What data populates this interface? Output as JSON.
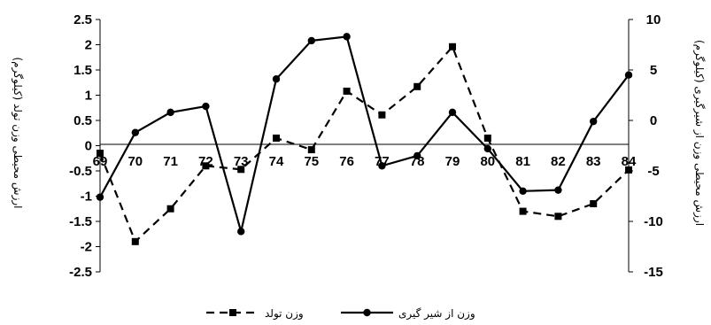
{
  "chart_data": {
    "type": "line",
    "title": "",
    "x": [
      "69",
      "70",
      "71",
      "72",
      "73",
      "74",
      "75",
      "76",
      "77",
      "78",
      "79",
      "80",
      "81",
      "82",
      "83",
      "84"
    ],
    "xlabel": "",
    "ylabel": "ارزش محیطی وزن تولد (کیلوگرم)",
    "y2label": "ارزش محیطی وزن از شیرگیری (کیلوگرم)",
    "ylim": [
      -2.5,
      2.5
    ],
    "ystep": 0.5,
    "yticks": [
      "2.5",
      "2",
      "1.5",
      "1",
      "0.5",
      "0",
      "-0.5",
      "-1",
      "-1.5",
      "-2",
      "-2.5"
    ],
    "y2lim": [
      -15,
      10
    ],
    "y2step": 5,
    "y2ticks": [
      "10",
      "5",
      "0",
      "-5",
      "-10",
      "-15"
    ],
    "grid": false,
    "legend": "bottom",
    "series": [
      {
        "name": "وزن تولد",
        "axis": "left",
        "style": "dashed",
        "marker": "square",
        "color": "#000000",
        "values": [
          -0.15,
          -1.9,
          -1.25,
          -0.4,
          -0.47,
          0.15,
          -0.08,
          1.08,
          0.61,
          1.17,
          1.96,
          0.15,
          -1.3,
          -1.4,
          -1.15,
          -0.48
        ]
      },
      {
        "name": "وزن از شیر گیری",
        "axis": "right",
        "style": "solid",
        "marker": "circle",
        "color": "#000000",
        "values": [
          -7.6,
          -1.2,
          0.8,
          1.4,
          -11.0,
          4.1,
          7.9,
          8.3,
          -4.5,
          -3.5,
          0.8,
          -2.8,
          -7.0,
          -6.9,
          -0.1,
          4.5
        ]
      }
    ]
  }
}
